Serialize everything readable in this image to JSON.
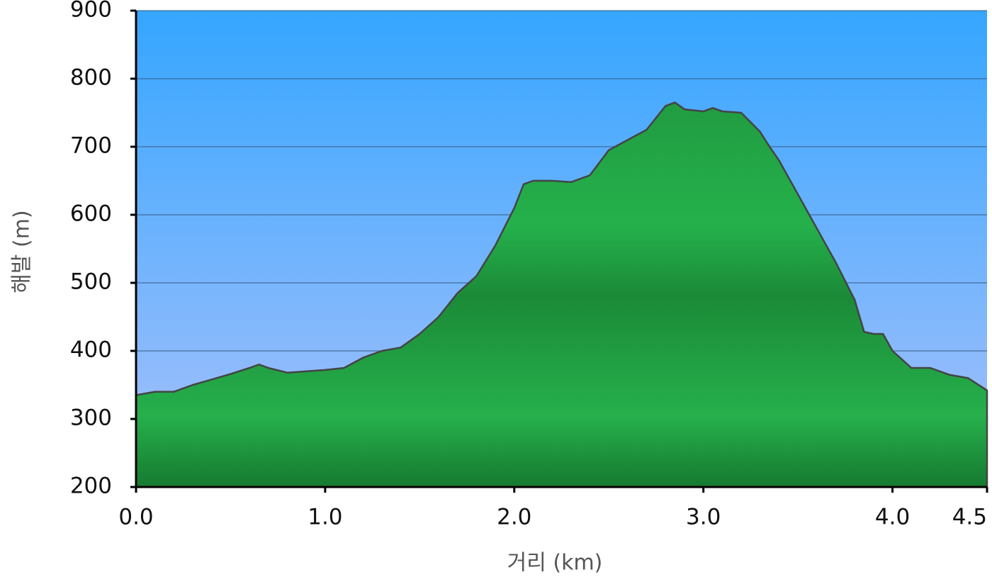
{
  "chart_data": {
    "type": "area",
    "x_label": "거리 (km)",
    "y_label": "해발 (m)",
    "x": [
      0.0,
      0.1,
      0.2,
      0.3,
      0.4,
      0.5,
      0.6,
      0.65,
      0.7,
      0.8,
      0.9,
      1.0,
      1.1,
      1.2,
      1.3,
      1.4,
      1.5,
      1.6,
      1.7,
      1.8,
      1.9,
      2.0,
      2.05,
      2.1,
      2.2,
      2.3,
      2.4,
      2.5,
      2.6,
      2.7,
      2.8,
      2.85,
      2.9,
      3.0,
      3.05,
      3.1,
      3.2,
      3.3,
      3.35,
      3.4,
      3.5,
      3.6,
      3.7,
      3.8,
      3.85,
      3.9,
      3.95,
      4.0,
      4.1,
      4.2,
      4.3,
      4.4,
      4.5
    ],
    "values": [
      335,
      340,
      340,
      350,
      358,
      366,
      375,
      380,
      375,
      368,
      370,
      372,
      375,
      390,
      400,
      405,
      425,
      450,
      485,
      510,
      555,
      610,
      645,
      650,
      650,
      648,
      658,
      695,
      710,
      725,
      760,
      765,
      755,
      752,
      757,
      752,
      750,
      722,
      700,
      680,
      630,
      580,
      530,
      475,
      428,
      425,
      425,
      400,
      375,
      375,
      365,
      360,
      342
    ],
    "color": "#22a545",
    "xlim": [
      0,
      4.5
    ],
    "ylim": [
      200,
      900
    ],
    "xticks": [
      {
        "value": 0,
        "label": "0.0"
      },
      {
        "value": 1,
        "label": "1.0"
      },
      {
        "value": 2,
        "label": "2.0"
      },
      {
        "value": 3,
        "label": "3.0"
      },
      {
        "value": 4,
        "label": "4.0"
      },
      4.5
    ],
    "yticks": [
      200,
      300,
      400,
      500,
      600,
      700,
      800,
      900
    ],
    "grid": true
  }
}
